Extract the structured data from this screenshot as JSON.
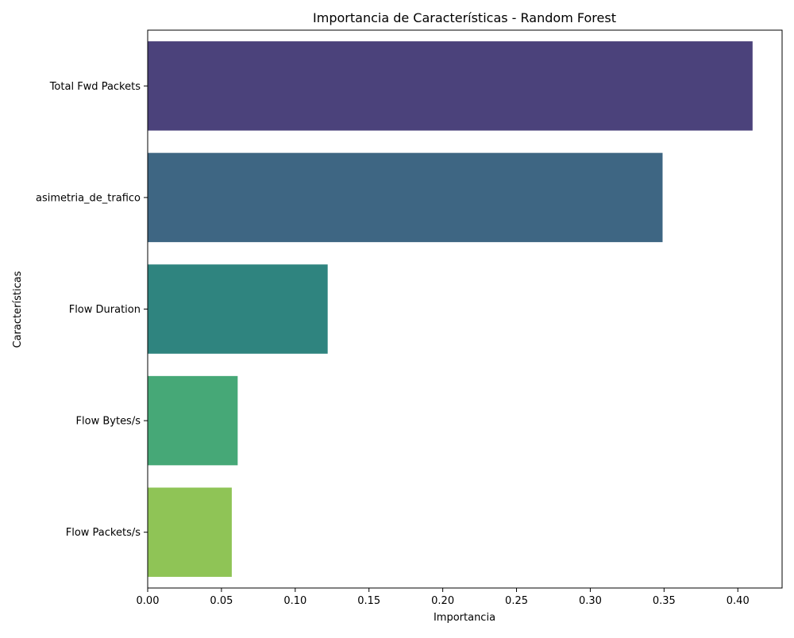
{
  "chart_data": {
    "type": "bar",
    "orientation": "horizontal",
    "title": "Importancia de Características - Random Forest",
    "xlabel": "Importancia",
    "ylabel": "Características",
    "categories": [
      "Total Fwd Packets",
      "asimetria_de_trafico",
      "Flow Duration",
      "Flow Bytes/s",
      "Flow Packets/s"
    ],
    "values": [
      0.41,
      0.349,
      0.122,
      0.061,
      0.057
    ],
    "colors": [
      "#4b427b",
      "#3e6683",
      "#2f847f",
      "#46a877",
      "#8fc456"
    ],
    "xlim": [
      0,
      0.43
    ],
    "xticks": [
      0.0,
      0.05,
      0.1,
      0.15,
      0.2,
      0.25,
      0.3,
      0.35,
      0.4
    ],
    "xtick_labels": [
      "0.00",
      "0.05",
      "0.10",
      "0.15",
      "0.20",
      "0.25",
      "0.30",
      "0.35",
      "0.40"
    ],
    "grid": false,
    "legend": "none"
  }
}
